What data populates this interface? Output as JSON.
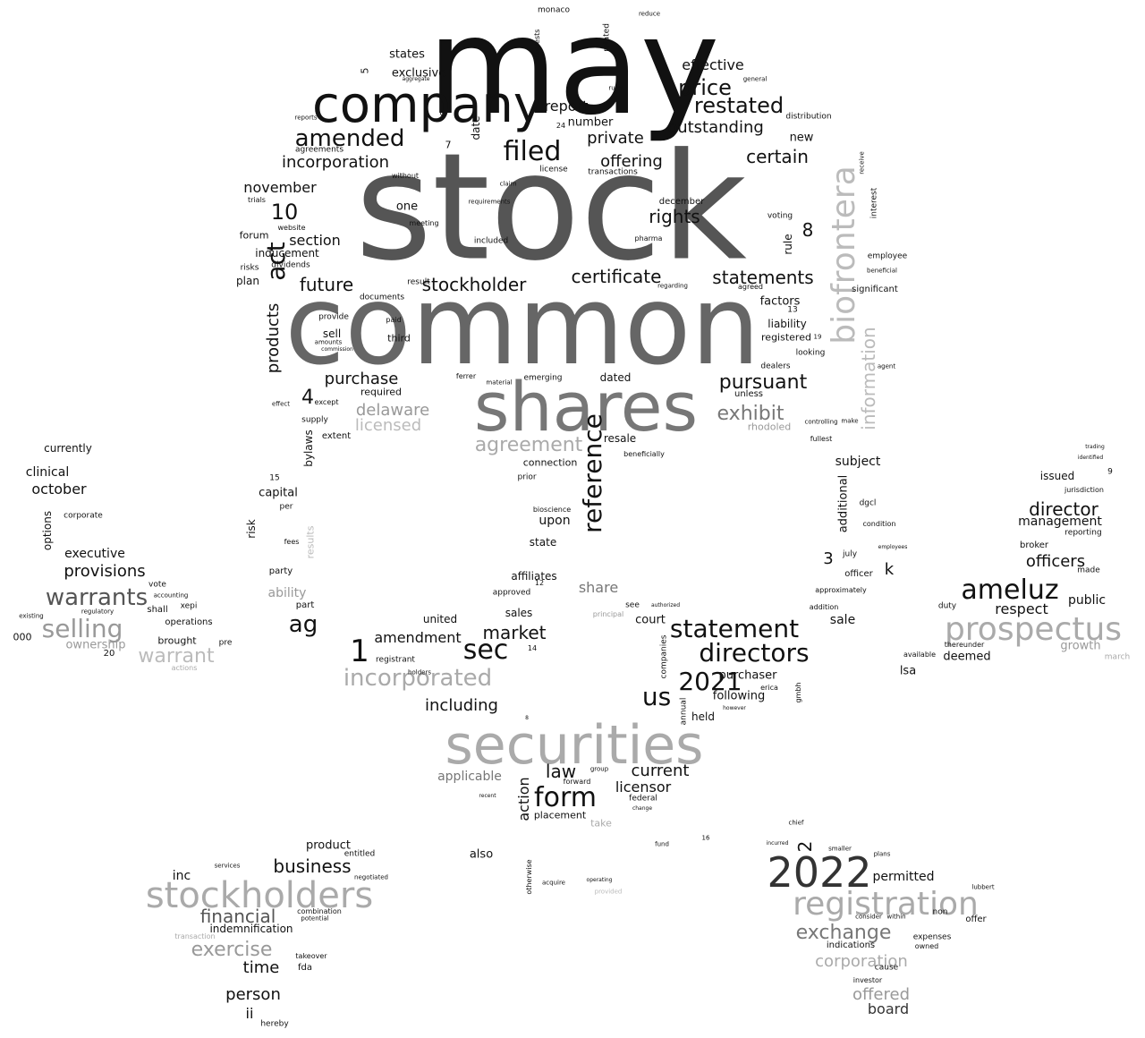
{
  "words": [
    {
      "text": "may",
      "color": "#111111"
    },
    {
      "text": "stock",
      "color": "#555555"
    },
    {
      "text": "common",
      "color": "#666666"
    },
    {
      "text": "company",
      "color": "#111111"
    },
    {
      "text": "shares",
      "color": "#777777"
    },
    {
      "text": "securities",
      "color": "#aaaaaa"
    },
    {
      "text": "biofrontera",
      "color": "#bbbbbb"
    },
    {
      "text": "2022",
      "color": "#333333"
    },
    {
      "text": "registration",
      "color": "#aaaaaa"
    },
    {
      "text": "stockholders",
      "color": "#aaaaaa"
    },
    {
      "text": "prospectus",
      "color": "#aaaaaa"
    },
    {
      "text": "filed",
      "color": "#111111"
    },
    {
      "text": "amended",
      "color": "#111111"
    },
    {
      "text": "restated",
      "color": "#111111"
    },
    {
      "text": "price",
      "color": "#111111"
    },
    {
      "text": "offering",
      "color": "#111111"
    },
    {
      "text": "private",
      "color": "#111111"
    },
    {
      "text": "certain",
      "color": "#111111"
    },
    {
      "text": "incorporation",
      "color": "#111111"
    },
    {
      "text": "outstanding",
      "color": "#111111"
    },
    {
      "text": "effective",
      "color": "#111111"
    },
    {
      "text": "report",
      "color": "#111111"
    },
    {
      "text": "rights",
      "color": "#111111"
    },
    {
      "text": "certificate",
      "color": "#111111"
    },
    {
      "text": "statements",
      "color": "#111111"
    },
    {
      "text": "stockholder",
      "color": "#111111"
    },
    {
      "text": "future",
      "color": "#111111"
    },
    {
      "text": "section",
      "color": "#111111"
    },
    {
      "text": "november",
      "color": "#111111"
    },
    {
      "text": "act",
      "color": "#111111"
    },
    {
      "text": "products",
      "color": "#111111"
    },
    {
      "text": "purchase",
      "color": "#111111"
    },
    {
      "text": "delaware",
      "color": "#999999"
    },
    {
      "text": "licensed",
      "color": "#bbbbbb"
    },
    {
      "text": "agreement",
      "color": "#aaaaaa"
    },
    {
      "text": "reference",
      "color": "#111111"
    },
    {
      "text": "pursuant",
      "color": "#111111"
    },
    {
      "text": "exhibit",
      "color": "#777777"
    },
    {
      "text": "information",
      "color": "#bbbbbb"
    },
    {
      "text": "statement",
      "color": "#111111"
    },
    {
      "text": "directors",
      "color": "#111111"
    },
    {
      "text": "2021",
      "color": "#111111"
    },
    {
      "text": "us",
      "color": "#111111"
    },
    {
      "text": "sec",
      "color": "#111111"
    },
    {
      "text": "market",
      "color": "#111111"
    },
    {
      "text": "incorporated",
      "color": "#aaaaaa"
    },
    {
      "text": "including",
      "color": "#111111"
    },
    {
      "text": "form",
      "color": "#111111"
    },
    {
      "text": "law",
      "color": "#111111"
    },
    {
      "text": "current",
      "color": "#111111"
    },
    {
      "text": "licensor",
      "color": "#111111"
    },
    {
      "text": "action",
      "color": "#111111"
    },
    {
      "text": "amendment",
      "color": "#111111"
    },
    {
      "text": "ag",
      "color": "#111111"
    },
    {
      "text": "1",
      "color": "#111111"
    },
    {
      "text": "ameluz",
      "color": "#111111"
    },
    {
      "text": "director",
      "color": "#111111"
    },
    {
      "text": "officers",
      "color": "#111111"
    },
    {
      "text": "management",
      "color": "#111111"
    },
    {
      "text": "respect",
      "color": "#111111"
    },
    {
      "text": "exchange",
      "color": "#777777"
    },
    {
      "text": "corporation",
      "color": "#aaaaaa"
    },
    {
      "text": "offered",
      "color": "#999999"
    },
    {
      "text": "board",
      "color": "#333333"
    },
    {
      "text": "permitted",
      "color": "#111111"
    },
    {
      "text": "business",
      "color": "#111111"
    },
    {
      "text": "financial",
      "color": "#555555"
    },
    {
      "text": "exercise",
      "color": "#999999"
    },
    {
      "text": "time",
      "color": "#111111"
    },
    {
      "text": "person",
      "color": "#111111"
    },
    {
      "text": "ii",
      "color": "#111111"
    },
    {
      "text": "warrants",
      "color": "#555555"
    },
    {
      "text": "selling",
      "color": "#999999"
    },
    {
      "text": "warrant",
      "color": "#bbbbbb"
    },
    {
      "text": "provisions",
      "color": "#111111"
    },
    {
      "text": "october",
      "color": "#111111"
    },
    {
      "text": "clinical",
      "color": "#111111"
    },
    {
      "text": "currently",
      "color": "#111111"
    },
    {
      "text": "executive",
      "color": "#111111"
    },
    {
      "text": "ownership",
      "color": "#999999"
    },
    {
      "text": "10",
      "color": "#111111"
    },
    {
      "text": "8",
      "color": "#111111"
    },
    {
      "text": "4",
      "color": "#111111"
    },
    {
      "text": "3",
      "color": "#111111"
    },
    {
      "text": "2",
      "color": "#111111"
    },
    {
      "text": "k",
      "color": "#111111"
    },
    {
      "text": "share",
      "color": "#777777"
    },
    {
      "text": "ability",
      "color": "#999999"
    },
    {
      "text": "sale",
      "color": "#111111"
    },
    {
      "text": "sales",
      "color": "#111111"
    },
    {
      "text": "upon",
      "color": "#111111"
    },
    {
      "text": "affiliates",
      "color": "#111111"
    },
    {
      "text": "state",
      "color": "#111111"
    },
    {
      "text": "capital",
      "color": "#111111"
    },
    {
      "text": "risk",
      "color": "#111111"
    },
    {
      "text": "number",
      "color": "#111111"
    },
    {
      "text": "states",
      "color": "#111111"
    },
    {
      "text": "exclusive",
      "color": "#111111"
    },
    {
      "text": "new",
      "color": "#111111"
    },
    {
      "text": "one",
      "color": "#111111"
    },
    {
      "text": "rule",
      "color": "#111111"
    },
    {
      "text": "factors",
      "color": "#111111"
    },
    {
      "text": "liability",
      "color": "#111111"
    },
    {
      "text": "registered",
      "color": "#111111"
    },
    {
      "text": "subject",
      "color": "#111111"
    },
    {
      "text": "additional",
      "color": "#111111"
    },
    {
      "text": "issued",
      "color": "#111111"
    },
    {
      "text": "public",
      "color": "#111111"
    },
    {
      "text": "growth",
      "color": "#999999"
    },
    {
      "text": "deemed",
      "color": "#111111"
    },
    {
      "text": "lsa",
      "color": "#111111"
    },
    {
      "text": "court",
      "color": "#111111"
    },
    {
      "text": "held",
      "color": "#111111"
    },
    {
      "text": "purchaser",
      "color": "#111111"
    },
    {
      "text": "following",
      "color": "#111111"
    },
    {
      "text": "applicable",
      "color": "#777777"
    },
    {
      "text": "united",
      "color": "#111111"
    },
    {
      "text": "product",
      "color": "#111111"
    },
    {
      "text": "inc",
      "color": "#111111"
    },
    {
      "text": "also",
      "color": "#111111"
    },
    {
      "text": "indemnification",
      "color": "#111111"
    },
    {
      "text": "bylaws",
      "color": "#111111"
    },
    {
      "text": "plan",
      "color": "#111111"
    },
    {
      "text": "forum",
      "color": "#111111"
    },
    {
      "text": "inducement",
      "color": "#111111"
    },
    {
      "text": "dividends",
      "color": "#111111"
    },
    {
      "text": "risks",
      "color": "#111111"
    },
    {
      "text": "sell",
      "color": "#111111"
    },
    {
      "text": "third",
      "color": "#111111"
    },
    {
      "text": "required",
      "color": "#111111"
    },
    {
      "text": "dated",
      "color": "#111111"
    },
    {
      "text": "resale",
      "color": "#111111"
    },
    {
      "text": "connection",
      "color": "#111111"
    },
    {
      "text": "bioscience",
      "color": "#111111"
    },
    {
      "text": "significant",
      "color": "#111111"
    },
    {
      "text": "employee",
      "color": "#111111"
    },
    {
      "text": "looking",
      "color": "#111111"
    },
    {
      "text": "dealers",
      "color": "#111111"
    },
    {
      "text": "unless",
      "color": "#111111"
    },
    {
      "text": "rhodoled",
      "color": "#999999"
    },
    {
      "text": "december",
      "color": "#111111"
    },
    {
      "text": "voting",
      "color": "#111111"
    },
    {
      "text": "distribution",
      "color": "#111111"
    },
    {
      "text": "transactions",
      "color": "#111111"
    },
    {
      "text": "license",
      "color": "#111111"
    },
    {
      "text": "date",
      "color": "#111111"
    },
    {
      "text": "monaco",
      "color": "#111111"
    },
    {
      "text": "agreements",
      "color": "#111111"
    },
    {
      "text": "july",
      "color": "#111111"
    },
    {
      "text": "officer",
      "color": "#111111"
    },
    {
      "text": "approximately",
      "color": "#111111"
    },
    {
      "text": "dgcl",
      "color": "#111111"
    },
    {
      "text": "condition",
      "color": "#111111"
    },
    {
      "text": "broker",
      "color": "#111111"
    },
    {
      "text": "reporting",
      "color": "#111111"
    },
    {
      "text": "jurisdiction",
      "color": "#111111"
    },
    {
      "text": "made",
      "color": "#111111"
    },
    {
      "text": "duty",
      "color": "#111111"
    },
    {
      "text": "available",
      "color": "#111111"
    },
    {
      "text": "thereunder",
      "color": "#111111"
    },
    {
      "text": "march",
      "color": "#aaaaaa"
    },
    {
      "text": "expenses",
      "color": "#111111"
    },
    {
      "text": "indications",
      "color": "#111111"
    },
    {
      "text": "non",
      "color": "#111111"
    },
    {
      "text": "offer",
      "color": "#111111"
    },
    {
      "text": "owned",
      "color": "#111111"
    },
    {
      "text": "cause",
      "color": "#111111"
    },
    {
      "text": "investor",
      "color": "#111111"
    },
    {
      "text": "entitled",
      "color": "#111111"
    },
    {
      "text": "negotiated",
      "color": "#111111"
    },
    {
      "text": "combination",
      "color": "#111111"
    },
    {
      "text": "potential",
      "color": "#111111"
    },
    {
      "text": "takeover",
      "color": "#111111"
    },
    {
      "text": "fda",
      "color": "#111111"
    },
    {
      "text": "hereby",
      "color": "#111111"
    },
    {
      "text": "transaction",
      "color": "#aaaaaa"
    },
    {
      "text": "services",
      "color": "#111111"
    },
    {
      "text": "options",
      "color": "#111111"
    },
    {
      "text": "corporate",
      "color": "#111111"
    },
    {
      "text": "vote",
      "color": "#111111"
    },
    {
      "text": "xepi",
      "color": "#111111"
    },
    {
      "text": "accounting",
      "color": "#111111"
    },
    {
      "text": "shall",
      "color": "#111111"
    },
    {
      "text": "operations",
      "color": "#111111"
    },
    {
      "text": "brought",
      "color": "#111111"
    },
    {
      "text": "pre",
      "color": "#111111"
    },
    {
      "text": "000",
      "color": "#111111"
    },
    {
      "text": "20",
      "color": "#111111"
    },
    {
      "text": "existing",
      "color": "#111111"
    },
    {
      "text": "regulatory",
      "color": "#111111"
    },
    {
      "text": "actions",
      "color": "#aaaaaa"
    },
    {
      "text": "party",
      "color": "#111111"
    },
    {
      "text": "part",
      "color": "#111111"
    },
    {
      "text": "results",
      "color": "#bbbbbb"
    },
    {
      "text": "per",
      "color": "#111111"
    },
    {
      "text": "fees",
      "color": "#111111"
    },
    {
      "text": "15",
      "color": "#111111"
    },
    {
      "text": "extent",
      "color": "#111111"
    },
    {
      "text": "supply",
      "color": "#111111"
    },
    {
      "text": "except",
      "color": "#111111"
    },
    {
      "text": "effect",
      "color": "#111111"
    },
    {
      "text": "documents",
      "color": "#111111"
    },
    {
      "text": "result",
      "color": "#111111"
    },
    {
      "text": "paid",
      "color": "#111111"
    },
    {
      "text": "provide",
      "color": "#111111"
    },
    {
      "text": "amounts",
      "color": "#111111"
    },
    {
      "text": "commission",
      "color": "#111111"
    },
    {
      "text": "emerging",
      "color": "#111111"
    },
    {
      "text": "material",
      "color": "#111111"
    },
    {
      "text": "ferrer",
      "color": "#111111"
    },
    {
      "text": "prior",
      "color": "#111111"
    },
    {
      "text": "placement",
      "color": "#111111"
    },
    {
      "text": "take",
      "color": "#aaaaaa"
    },
    {
      "text": "forward",
      "color": "#111111"
    },
    {
      "text": "federal",
      "color": "#111111"
    },
    {
      "text": "companies",
      "color": "#111111"
    },
    {
      "text": "annual",
      "color": "#111111"
    },
    {
      "text": "approved",
      "color": "#111111"
    },
    {
      "text": "registrant",
      "color": "#111111"
    },
    {
      "text": "holders",
      "color": "#111111"
    },
    {
      "text": "lubbert",
      "color": "#111111"
    },
    {
      "text": "smaller",
      "color": "#111111"
    },
    {
      "text": "plans",
      "color": "#111111"
    },
    {
      "text": "consider",
      "color": "#111111"
    },
    {
      "text": "within",
      "color": "#111111"
    },
    {
      "text": "fund",
      "color": "#111111"
    },
    {
      "text": "chief",
      "color": "#111111"
    },
    {
      "text": "incurred",
      "color": "#111111"
    },
    {
      "text": "otherwise",
      "color": "#111111"
    },
    {
      "text": "acquire",
      "color": "#111111"
    },
    {
      "text": "operating",
      "color": "#111111"
    },
    {
      "text": "provided",
      "color": "#bbbbbb"
    },
    {
      "text": "group",
      "color": "#111111"
    },
    {
      "text": "recent",
      "color": "#111111"
    },
    {
      "text": "change",
      "color": "#111111"
    },
    {
      "text": "see",
      "color": "#111111"
    },
    {
      "text": "gmbh",
      "color": "#111111"
    },
    {
      "text": "erica",
      "color": "#111111"
    },
    {
      "text": "however",
      "color": "#111111"
    },
    {
      "text": "principal",
      "color": "#999999"
    },
    {
      "text": "authorized",
      "color": "#111111"
    },
    {
      "text": "trading",
      "color": "#111111"
    },
    {
      "text": "identified",
      "color": "#111111"
    },
    {
      "text": "agent",
      "color": "#111111"
    },
    {
      "text": "employees",
      "color": "#111111"
    },
    {
      "text": "interest",
      "color": "#111111"
    },
    {
      "text": "receive",
      "color": "#111111"
    },
    {
      "text": "addition",
      "color": "#111111"
    },
    {
      "text": "fullest",
      "color": "#111111"
    },
    {
      "text": "make",
      "color": "#111111"
    },
    {
      "text": "controlling",
      "color": "#111111"
    },
    {
      "text": "beneficial",
      "color": "#111111"
    },
    {
      "text": "beneficially",
      "color": "#111111"
    },
    {
      "text": "agreed",
      "color": "#111111"
    },
    {
      "text": "regarding",
      "color": "#111111"
    },
    {
      "text": "pharma",
      "color": "#111111"
    },
    {
      "text": "included",
      "color": "#111111"
    },
    {
      "text": "meeting",
      "color": "#111111"
    },
    {
      "text": "claim",
      "color": "#111111"
    },
    {
      "text": "requirements",
      "color": "#111111"
    },
    {
      "text": "website",
      "color": "#111111"
    },
    {
      "text": "trials",
      "color": "#111111"
    },
    {
      "text": "without",
      "color": "#111111"
    },
    {
      "text": "aggregate",
      "color": "#111111"
    },
    {
      "text": "rules",
      "color": "#111111"
    },
    {
      "text": "related",
      "color": "#111111"
    },
    {
      "text": "interests",
      "color": "#111111"
    },
    {
      "text": "reduce",
      "color": "#111111"
    },
    {
      "text": "general",
      "color": "#111111"
    },
    {
      "text": "reports",
      "color": "#111111"
    },
    {
      "text": "12",
      "color": "#111111"
    },
    {
      "text": "14",
      "color": "#111111"
    },
    {
      "text": "5",
      "color": "#111111"
    },
    {
      "text": "6",
      "color": "#111111"
    },
    {
      "text": "7",
      "color": "#111111"
    },
    {
      "text": "9",
      "color": "#111111"
    },
    {
      "text": "13",
      "color": "#111111"
    },
    {
      "text": "16",
      "color": "#111111"
    },
    {
      "text": "24",
      "color": "#111111"
    },
    {
      "text": "19",
      "color": "#111111"
    },
    {
      "text": "8",
      "color": "#111111"
    }
  ]
}
